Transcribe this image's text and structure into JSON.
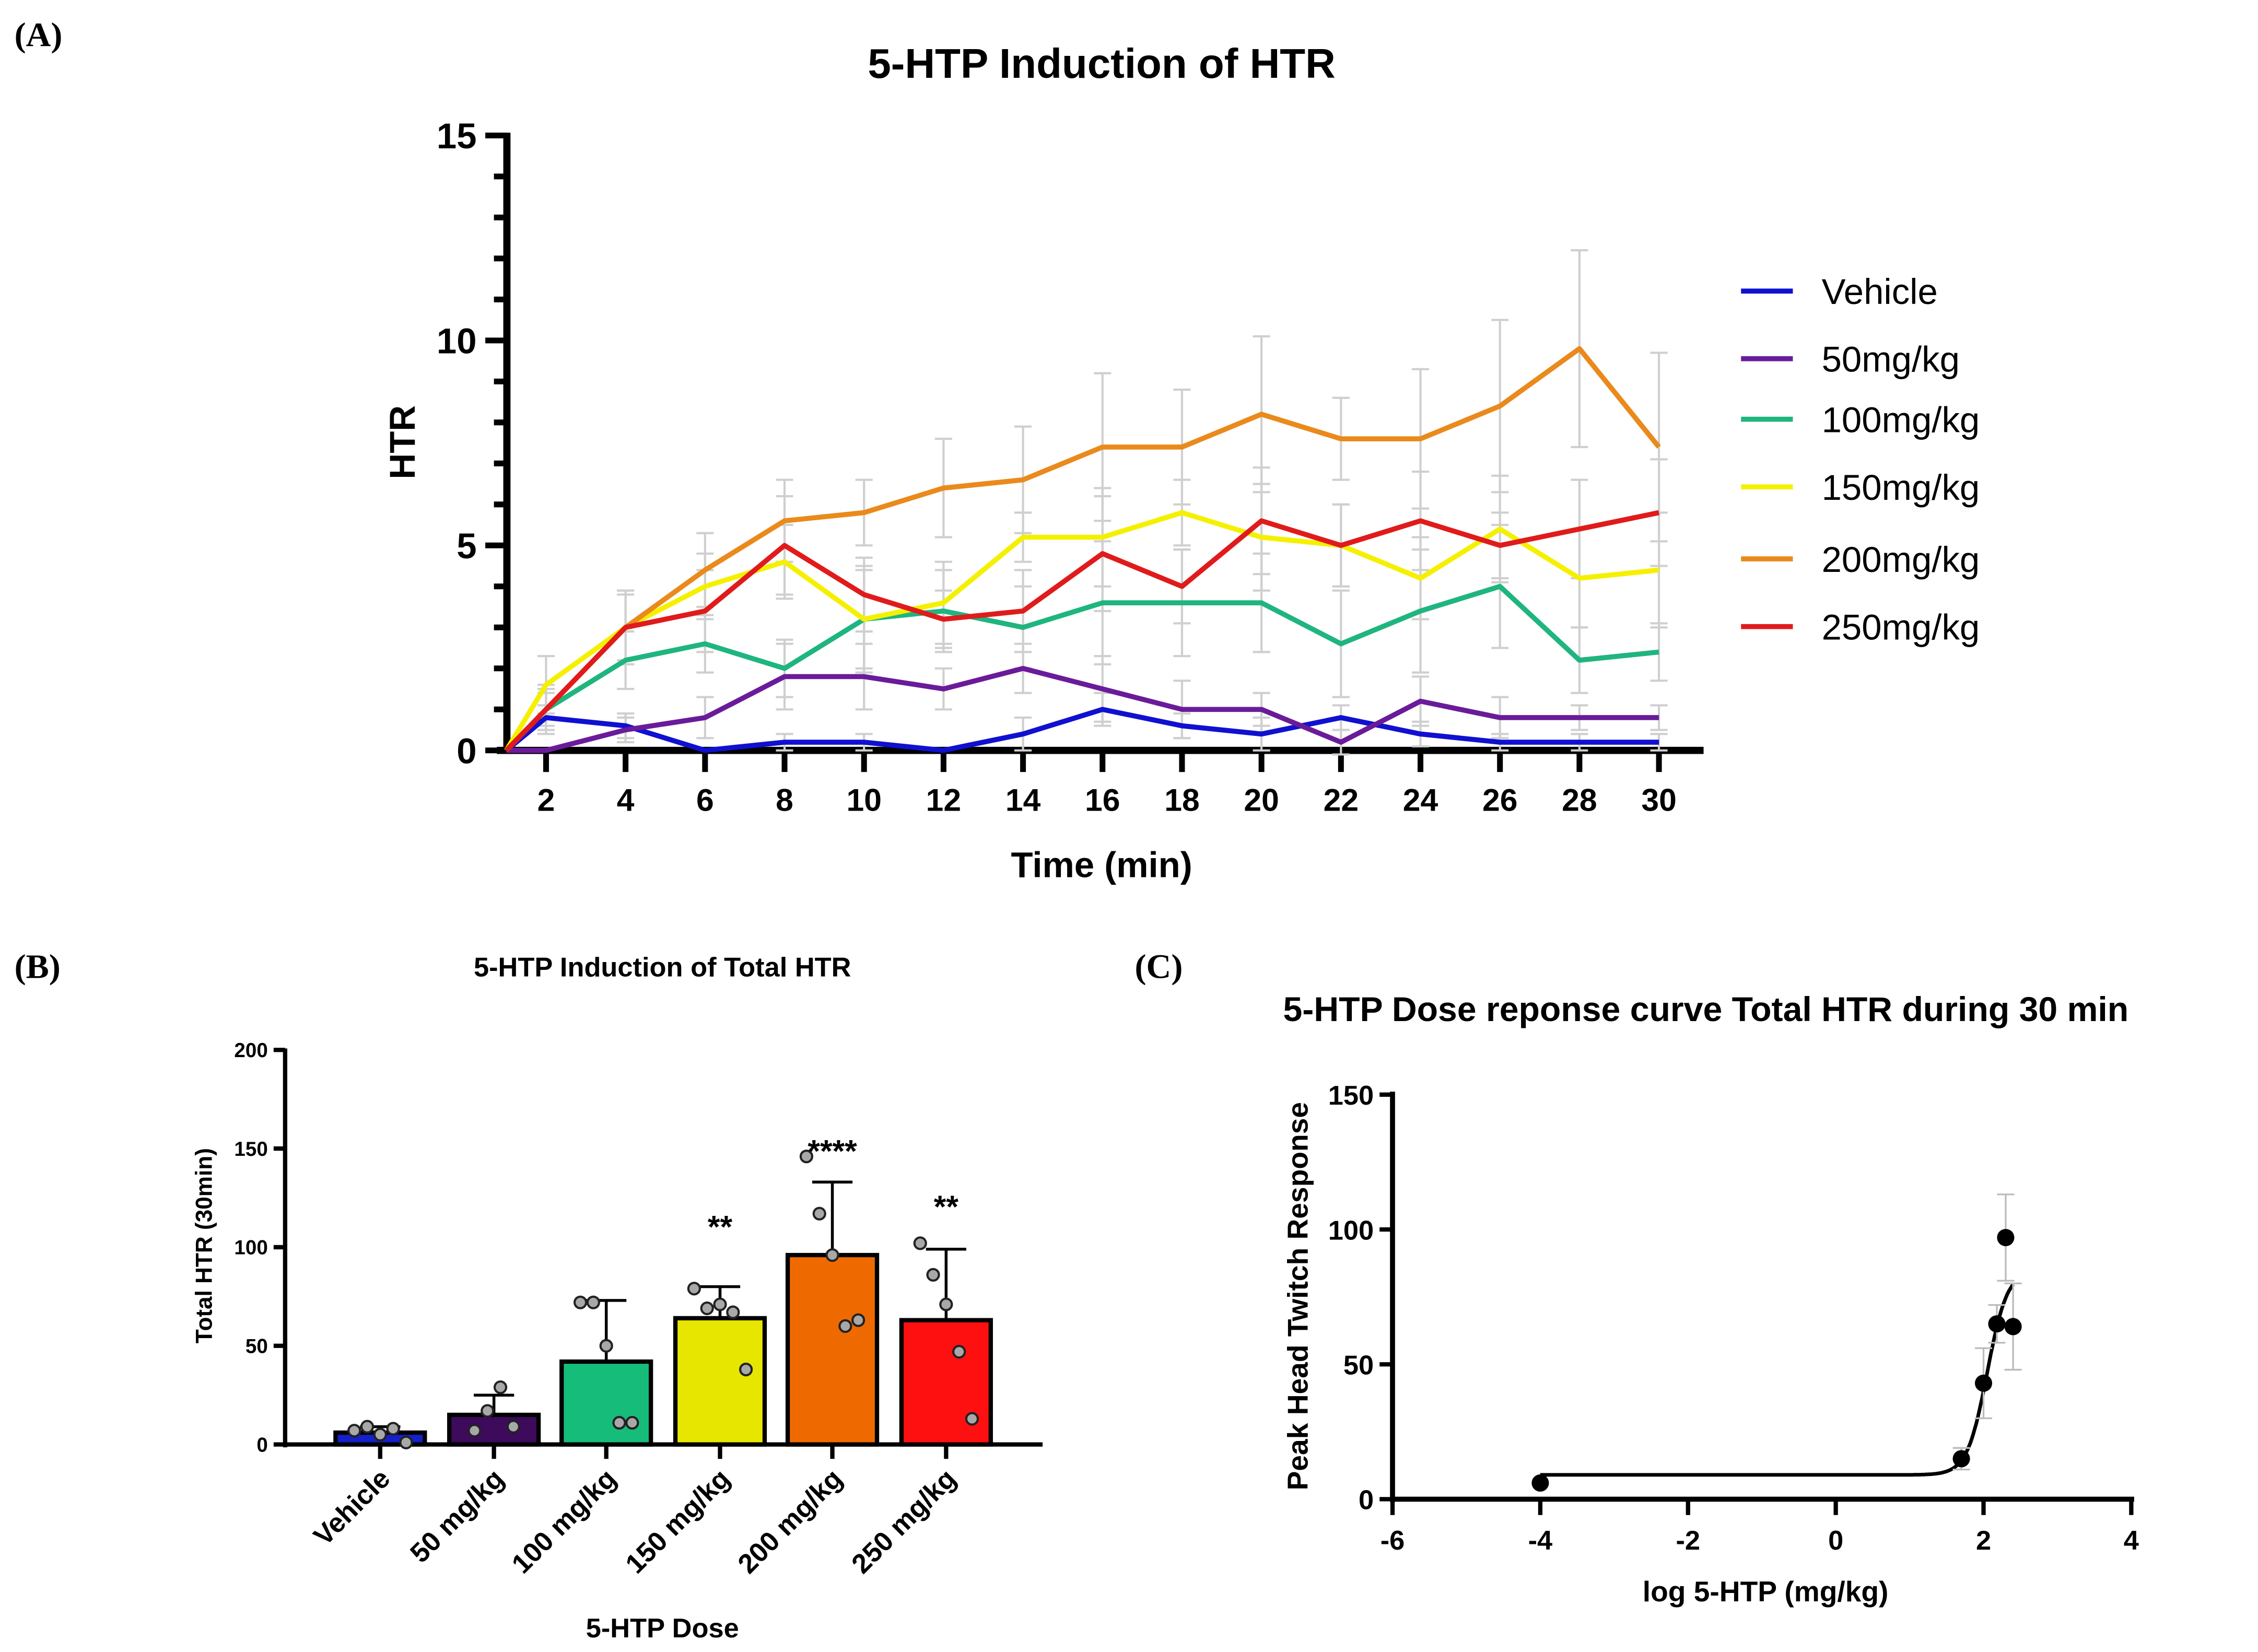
{
  "panels": {
    "a": "(A)",
    "b": "(B)",
    "c": "(C)"
  },
  "chart_data": [
    {
      "type": "line",
      "title": "5-HTP Induction of HTR",
      "xlabel": "Time (min)",
      "ylabel": "HTR",
      "xlim": [
        0,
        30
      ],
      "ylim": [
        0,
        15
      ],
      "xticks": [
        "2",
        "4",
        "6",
        "8",
        "10",
        "12",
        "14",
        "16",
        "18",
        "20",
        "22",
        "24",
        "26",
        "28",
        "30"
      ],
      "yticks": [
        "0",
        "5",
        "10",
        "15"
      ],
      "legend_position": "right",
      "x": [
        1,
        2,
        4,
        6,
        8,
        10,
        12,
        14,
        16,
        18,
        20,
        22,
        24,
        26,
        28,
        30
      ],
      "series": [
        {
          "name": "Vehicle",
          "color": "#1010d0",
          "values": [
            0,
            0.8,
            0.6,
            0,
            0.2,
            0.2,
            0,
            0.4,
            1.0,
            0.6,
            0.4,
            0.8,
            0.4,
            0.2,
            0.2,
            0.2
          ],
          "error": [
            0,
            0.3,
            0.3,
            0,
            0.2,
            0.2,
            0,
            0.4,
            0.4,
            0.3,
            0.4,
            0.3,
            0.3,
            0.2,
            0.2,
            0.2
          ]
        },
        {
          "name": "50mg/kg",
          "color": "#6a1b9a",
          "values": [
            0,
            0,
            0.5,
            0.8,
            1.8,
            1.8,
            1.5,
            2.0,
            1.5,
            1.0,
            1.0,
            0.2,
            1.2,
            0.8,
            0.8,
            0.8
          ],
          "error": [
            0,
            0,
            0.3,
            0.5,
            0.8,
            0.8,
            0.5,
            0.6,
            0.8,
            0.7,
            0.4,
            0.3,
            0.6,
            0.5,
            0.3,
            0.3
          ]
        },
        {
          "name": "100mg/kg",
          "color": "#1fb57f",
          "values": [
            0,
            1.0,
            2.2,
            2.6,
            2.0,
            3.2,
            3.4,
            3.0,
            3.6,
            3.6,
            3.6,
            2.6,
            3.4,
            4.0,
            2.2,
            2.4
          ],
          "error": [
            0,
            0.5,
            0.7,
            0.7,
            0.7,
            1.2,
            1.0,
            1.0,
            1.5,
            1.3,
            1.2,
            1.3,
            1.5,
            1.5,
            0.8,
            0.7
          ]
        },
        {
          "name": "150mg/kg",
          "color": "#f5f000",
          "values": [
            0,
            1.6,
            3.0,
            4.0,
            4.6,
            3.2,
            3.6,
            5.2,
            5.2,
            5.8,
            5.2,
            5.0,
            4.2,
            5.4,
            4.2,
            4.4
          ],
          "error": [
            0,
            0.7,
            0.9,
            0.8,
            0.9,
            1.3,
            1.0,
            0.6,
            1.2,
            0.8,
            1.3,
            1.0,
            1.0,
            1.3,
            1.2,
            1.4
          ]
        },
        {
          "name": "200mg/kg",
          "color": "#ea8a1c",
          "values": [
            0,
            1.0,
            3.0,
            4.4,
            5.6,
            5.8,
            6.4,
            6.6,
            7.4,
            7.4,
            8.2,
            7.6,
            7.6,
            8.4,
            9.8,
            7.4
          ],
          "error": [
            0,
            0.6,
            0.9,
            0.9,
            1.0,
            0.8,
            1.2,
            1.3,
            1.8,
            1.4,
            1.9,
            1.0,
            1.7,
            2.1,
            2.4,
            2.3
          ]
        },
        {
          "name": "250mg/kg",
          "color": "#e01b1b",
          "values": [
            0,
            1.0,
            3.0,
            3.4,
            5.0,
            3.8,
            3.2,
            3.4,
            4.8,
            4.0,
            5.6,
            5.0,
            5.6,
            5.0,
            5.4,
            5.8
          ],
          "error": [
            0,
            0.4,
            0.8,
            1.0,
            1.2,
            0.9,
            0.7,
            1.0,
            1.4,
            0.9,
            1.3,
            1.0,
            1.2,
            0.8,
            1.2,
            1.3
          ]
        }
      ]
    },
    {
      "type": "bar",
      "title": "5-HTP Induction of Total HTR",
      "xlabel": "5-HTP Dose",
      "ylabel": "Total HTR (30min)",
      "ylim": [
        0,
        200
      ],
      "yticks": [
        "0",
        "50",
        "100",
        "150",
        "200"
      ],
      "categories": [
        "Vehicle",
        "50 mg/kg",
        "100 mg/kg",
        "150 mg/kg",
        "200 mg/kg",
        "250 mg/kg"
      ],
      "values": [
        6,
        15,
        42,
        64,
        96,
        63
      ],
      "error_top": [
        9,
        25,
        73,
        80,
        133,
        99
      ],
      "colors": [
        "#1420c8",
        "#3d0a5c",
        "#16bc7a",
        "#e6e600",
        "#ee6a00",
        "#ff1010"
      ],
      "points": [
        [
          7,
          9,
          5,
          8,
          1
        ],
        [
          7,
          17,
          29,
          9
        ],
        [
          72,
          72,
          50,
          11,
          11
        ],
        [
          79,
          69,
          71,
          67,
          38
        ],
        [
          146,
          117,
          96,
          60,
          63
        ],
        [
          102,
          86,
          71,
          47,
          13
        ]
      ],
      "significance": [
        "",
        "",
        "",
        "**",
        "****",
        "**"
      ]
    },
    {
      "type": "scatter",
      "title": "5-HTP Dose reponse curve Total HTR during 30 min",
      "xlabel": "log 5-HTP (mg/kg)",
      "ylabel": "Peak Head Twitch Response",
      "xlim": [
        -6,
        4
      ],
      "ylim": [
        0,
        150
      ],
      "xticks": [
        "-6",
        "-4",
        "-2",
        "0",
        "2",
        "4"
      ],
      "yticks": [
        "0",
        "50",
        "100",
        "150"
      ],
      "x": [
        -4,
        1.7,
        2.0,
        2.18,
        2.3,
        2.4
      ],
      "y": [
        6,
        15,
        43,
        65,
        97,
        64
      ],
      "error": [
        0,
        4,
        13,
        7,
        16,
        16
      ],
      "fit": {
        "model": "sigmoidal dose-response",
        "bottom": 9,
        "top": 85,
        "logEC50": 2.05,
        "hill": 3.2,
        "range": [
          -4,
          2.4
        ]
      }
    }
  ]
}
